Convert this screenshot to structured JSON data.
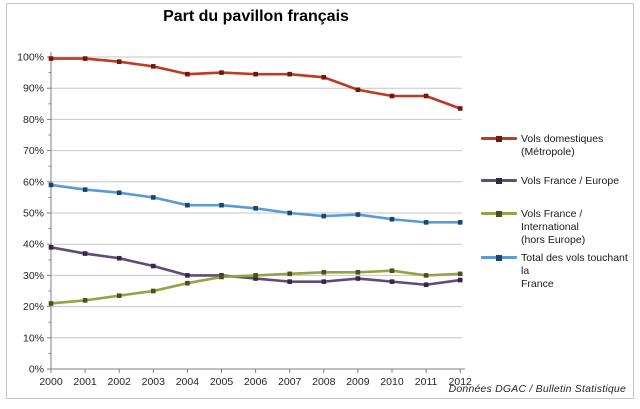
{
  "window": {
    "background": "#ffffff",
    "frame_border_color": "#c6c6c6"
  },
  "chart_data": {
    "type": "line",
    "title": "Part du pavillon français",
    "source": "Données DGAC / Bulletin Statistique",
    "x": [
      "2000",
      "2001",
      "2002",
      "2003",
      "2004",
      "2005",
      "2006",
      "2007",
      "2008",
      "2009",
      "2010",
      "2011",
      "2012"
    ],
    "ylim": [
      0,
      100
    ],
    "y_tick_step": 10,
    "y_minor_tick_step": 5,
    "y_tick_labels": [
      "0%",
      "10%",
      "20%",
      "30%",
      "40%",
      "50%",
      "60%",
      "70%",
      "80%",
      "90%",
      "100%"
    ],
    "grid": true,
    "gridline_color": "#c6c6c6",
    "axis_color": "#7f7f7f",
    "label_color": "#262626",
    "legend_position": "right",
    "series": [
      {
        "name": "Vols domestiques (Métropole)",
        "legend_lines": [
          "Vols domestiques",
          "(Métropole)"
        ],
        "color": "#be3a26",
        "marker_color": "#701708",
        "values": [
          99.5,
          99.5,
          98.5,
          97,
          94.5,
          95,
          94.5,
          94.5,
          93.5,
          89.5,
          87.5,
          87.5,
          83.5
        ]
      },
      {
        "name": "Vols France / Europe",
        "legend_lines": [
          "Vols France / Europe"
        ],
        "color": "#5f4b77",
        "marker_color": "#332647",
        "values": [
          39,
          37,
          35.5,
          33,
          30,
          30,
          29,
          28,
          28,
          29,
          28,
          27,
          28.5
        ]
      },
      {
        "name": "Vols France / International (hors Europe)",
        "legend_lines": [
          "Vols France / International",
          "(hors Europe)"
        ],
        "color": "#94a345",
        "marker_color": "#46511d",
        "values": [
          21,
          22,
          23.5,
          25,
          27.5,
          29.5,
          30,
          30.5,
          31,
          31,
          31.5,
          30,
          30.5
        ]
      },
      {
        "name": "Total des vols touchant la France",
        "legend_lines": [
          "Total des vols touchant la",
          "France"
        ],
        "color": "#5b9bd5",
        "marker_color": "#1f4467",
        "values": [
          59,
          57.5,
          56.5,
          55,
          52.5,
          52.5,
          51.5,
          50,
          49,
          49.5,
          48,
          47,
          47
        ]
      }
    ]
  }
}
